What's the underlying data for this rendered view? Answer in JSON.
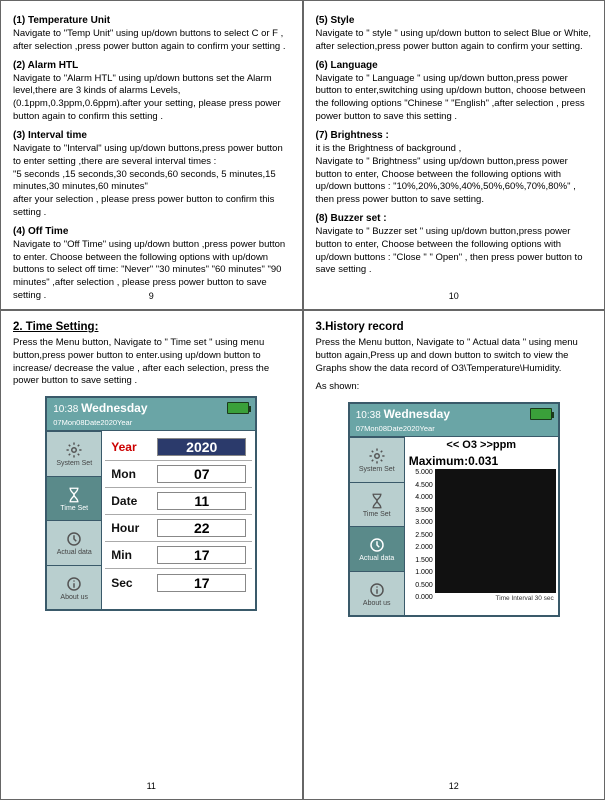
{
  "q1": {
    "s1": {
      "t": "(1) Temperature Unit",
      "b": "Navigate to \"Temp Unit\" using up/down buttons to select C or F , after selection ,press power button again to confirm your setting ."
    },
    "s2": {
      "t": "(2) Alarm HTL",
      "b": "Navigate to \"Alarm HTL\" using up/down buttons set the Alarm level,there are 3 kinds of alarms Levels,(0.1ppm,0.3ppm,0.6ppm).after your setting, please press power button again to confirm this setting ."
    },
    "s3": {
      "t": "(3) Interval time",
      "b": "Navigate to \"Interval\" using up/down buttons,press power button to enter setting ,there are several interval times :\n\"5 seconds ,15 seconds,30 seconds,60 seconds, 5 minutes,15 minutes,30 minutes,60 minutes\"\nafter your selection , please press power button to confirm this setting ."
    },
    "s4": {
      "t": "(4) Off Time",
      "b": "Navigate to \"Off Time\" using up/down button ,press power button to enter. Choose between the following options with up/down buttons to select off time: \"Never\" \"30 minutes\" \"60 minutes\" \"90 minutes\" ,after selection , please press power button to save setting ."
    },
    "pg": "9"
  },
  "q2": {
    "s5": {
      "t": "(5) Style",
      "b": "Navigate to \" style \" using up/down button to select Blue or White, after selection,press power button again to confirm your setting."
    },
    "s6": {
      "t": "(6) Language",
      "b": "Navigate to \" Language \"  using up/down button,press power button to enter,switching using up/down button, choose between the following options \"Chinese \" \"English\" ,after selection , press power button to save this setting ."
    },
    "s7": {
      "t": "(7) Brightness :",
      "b": "it is the Brightness of background ,\nNavigate to \" Brightness\"  using up/down button,press power button to enter, Choose between the following options with up/down buttons : \"10%,20%,30%,40%,50%,60%,70%,80%\" , then press power button to save setting."
    },
    "s8": {
      "t": "(8) Buzzer set :",
      "b": "Navigate to \" Buzzer set \"  using up/down button,press power button to enter, Choose between the following options with up/down buttons : \"Close \"  \"  Open\" , then press power button to save setting ."
    },
    "pg": "10"
  },
  "q3": {
    "title": "2. Time Setting:",
    "body": "Press the Menu button, Navigate to \" Time set \" using menu button,press power button to enter.using up/down button to increase/ decrease the value , after each selection, press the power button to save setting .",
    "pg": "11"
  },
  "q4": {
    "title": "3.History record",
    "body": "Press the Menu button, Navigate to  \" Actual data \" using menu button again,Press up and down button to switch to view the Graphs show the data record of O3\\Temperature\\Humidity.",
    "shown": "As shown:",
    "pg": "12"
  },
  "dev": {
    "time": "10:38",
    "day": "Wednesday",
    "date": "07Mon08Date2020Year",
    "side": [
      "System Set",
      "Time Set",
      "Actual data",
      "About us"
    ],
    "rows": [
      {
        "l": "Year",
        "v": "2020",
        "red": true,
        "inv": true
      },
      {
        "l": "Mon",
        "v": "07"
      },
      {
        "l": "Date",
        "v": "11"
      },
      {
        "l": "Hour",
        "v": "22"
      },
      {
        "l": "Min",
        "v": "17"
      },
      {
        "l": "Sec",
        "v": "17"
      }
    ]
  },
  "hist": {
    "hdr": "<<  O3  >>ppm",
    "max": "Maximum:0.031",
    "yticks": [
      "5.000",
      "4.500",
      "4.000",
      "3.500",
      "3.000",
      "2.500",
      "2.000",
      "1.500",
      "1.000",
      "0.500",
      "0.000"
    ],
    "xlabel": "Time Interval 30 sec"
  },
  "colors": {
    "teal": "#6aa5a6",
    "border": "#3a5a6a",
    "sideInactive": "#b9cfcf",
    "sideActive": "#5a8a8a",
    "valInv": "#2b3a6b",
    "red": "#c00",
    "plot": "#111"
  }
}
